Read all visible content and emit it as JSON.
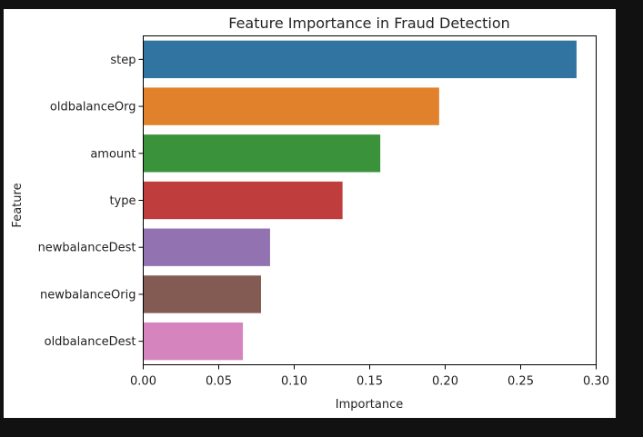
{
  "chart_data": {
    "type": "bar",
    "orientation": "horizontal",
    "title": "Feature Importance in Fraud Detection",
    "xlabel": "Importance",
    "ylabel": "Feature",
    "xlim": [
      0,
      0.3
    ],
    "xticks": [
      "0.00",
      "0.05",
      "0.10",
      "0.15",
      "0.20",
      "0.25",
      "0.30"
    ],
    "grid": false,
    "bars": [
      {
        "label": "step",
        "value": 0.287,
        "color": "#3274a1"
      },
      {
        "label": "oldbalanceOrg",
        "value": 0.196,
        "color": "#e1812c"
      },
      {
        "label": "amount",
        "value": 0.157,
        "color": "#3a923a"
      },
      {
        "label": "type",
        "value": 0.132,
        "color": "#c03d3e"
      },
      {
        "label": "newbalanceDest",
        "value": 0.084,
        "color": "#9372b2"
      },
      {
        "label": "newbalanceOrig",
        "value": 0.078,
        "color": "#845b53"
      },
      {
        "label": "oldbalanceDest",
        "value": 0.066,
        "color": "#d684bd"
      }
    ]
  }
}
